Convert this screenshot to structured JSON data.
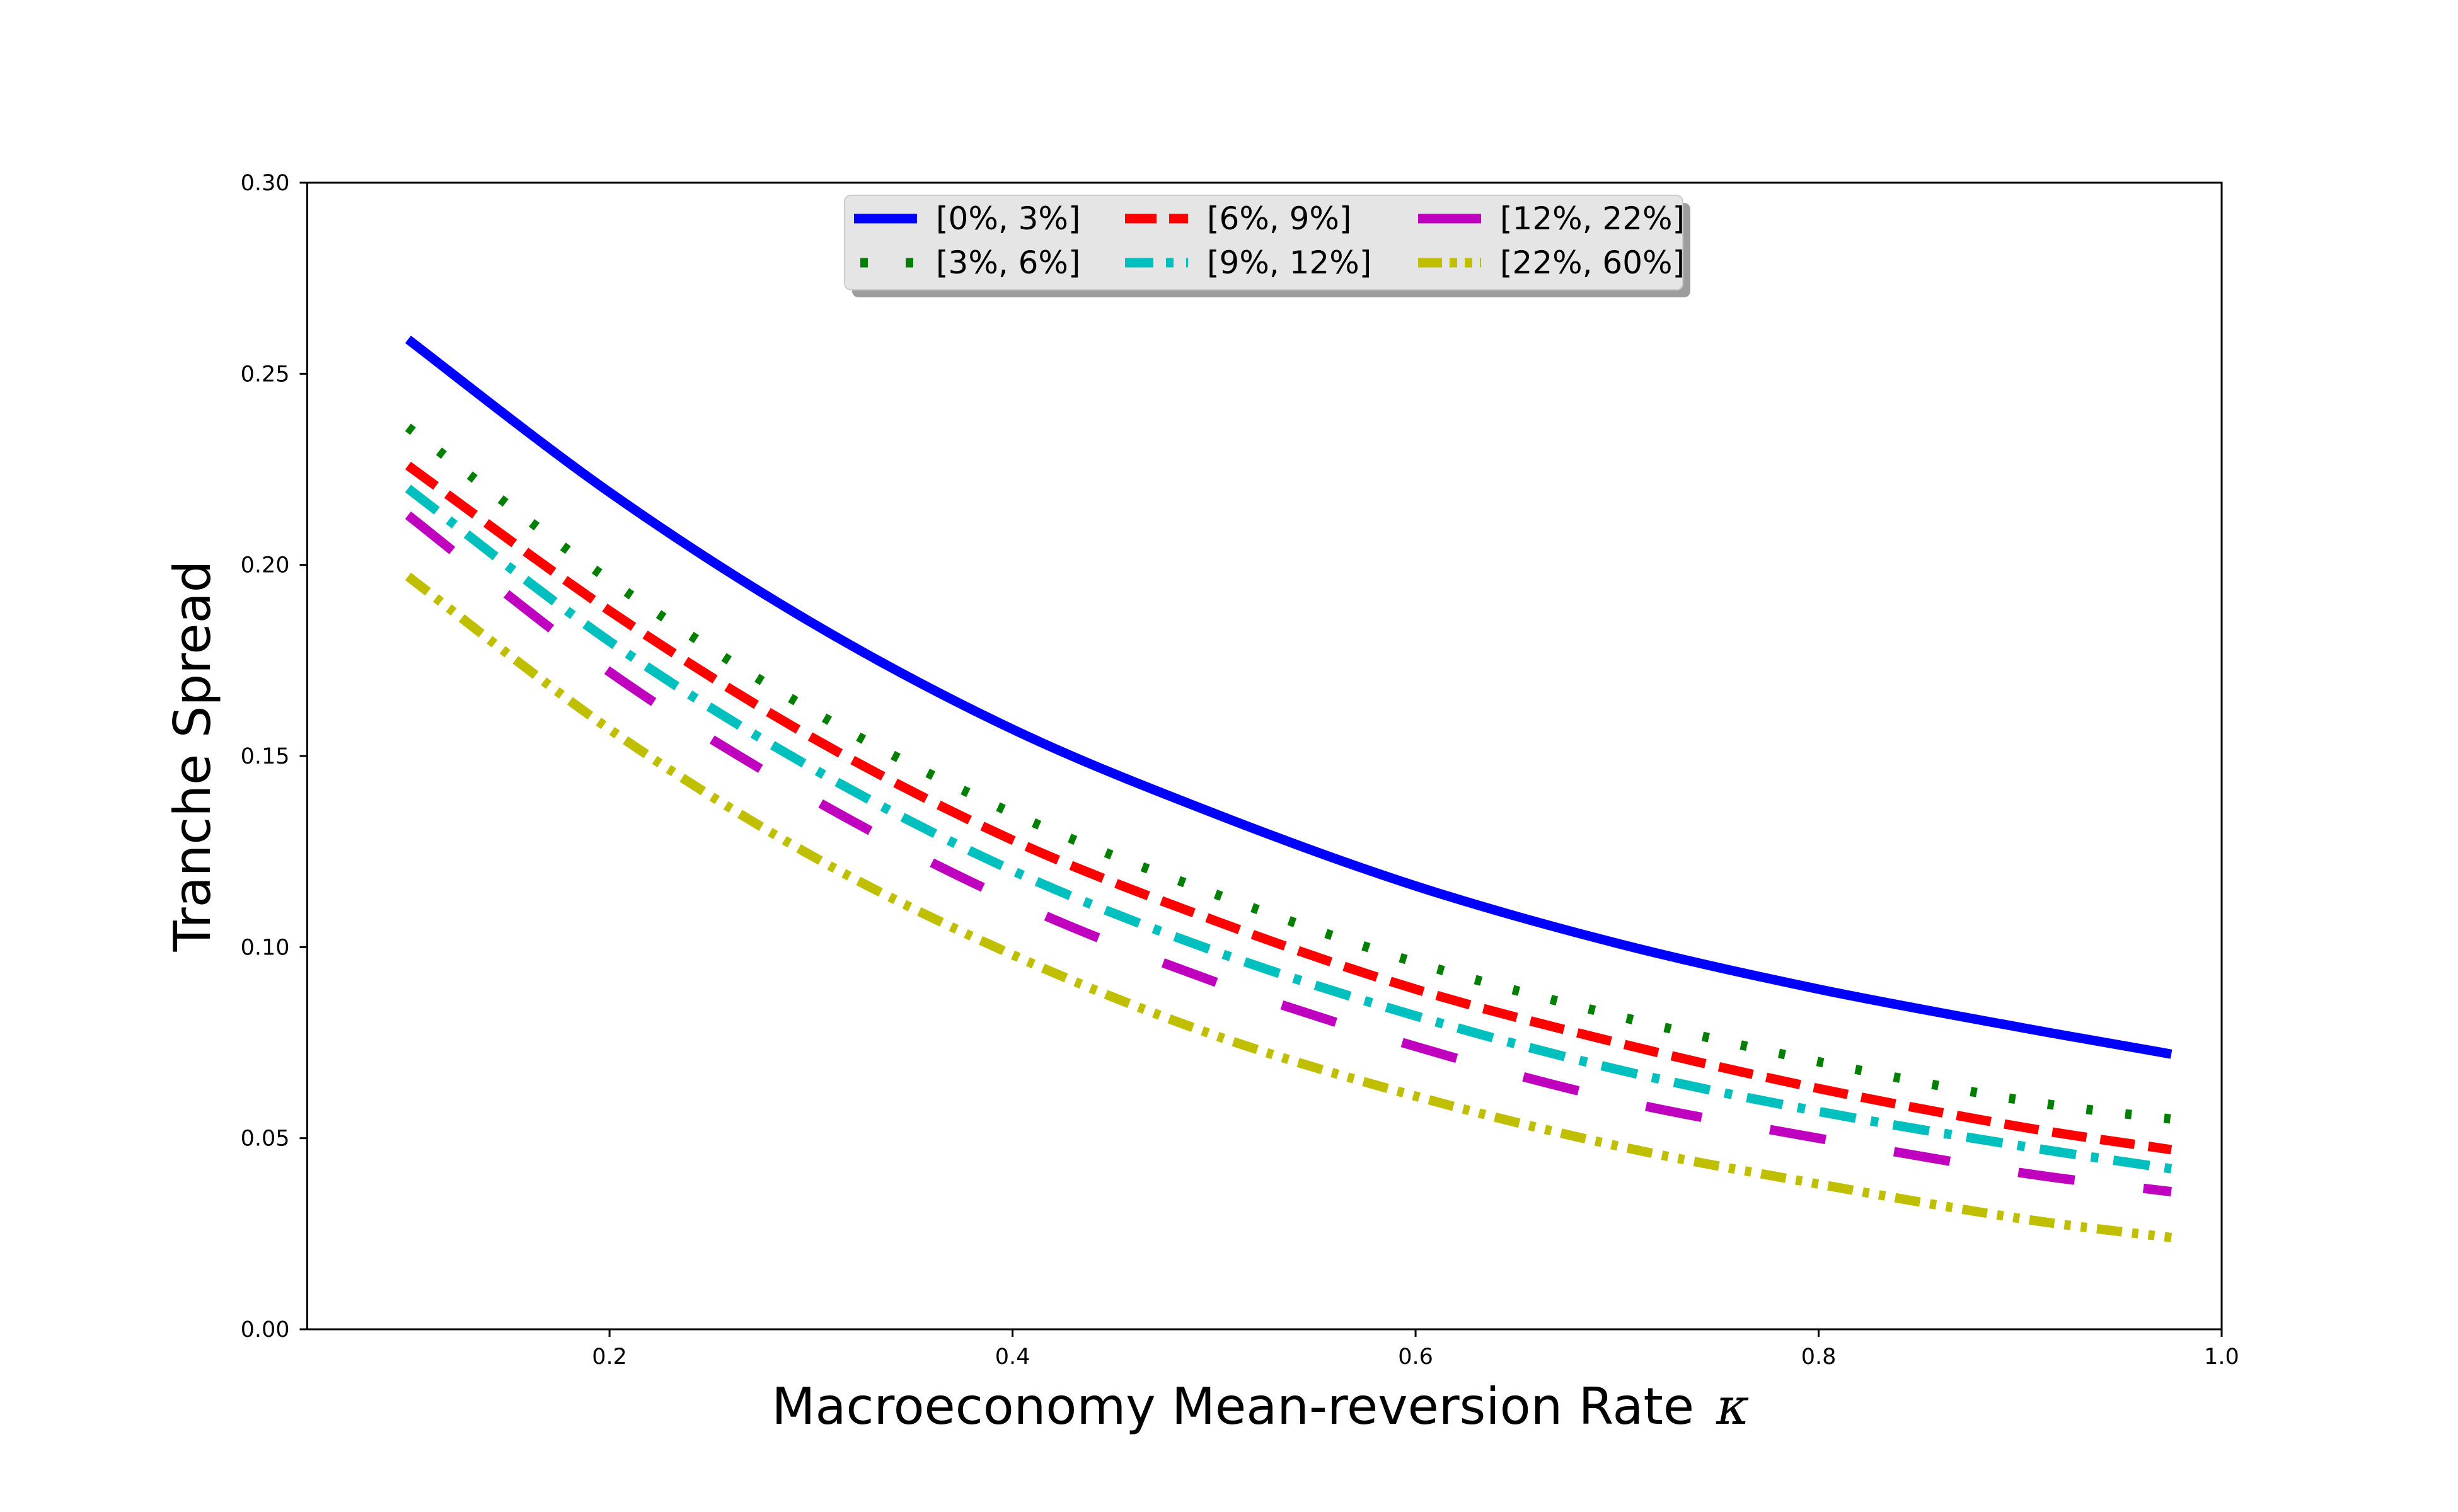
{
  "chart_data": {
    "type": "line",
    "title": "",
    "xlabel": "Macroeconomy Mean-reversion Rate",
    "xlabel_symbol": "κ",
    "ylabel": "Tranche Spread",
    "xlim": [
      0.05,
      1.0
    ],
    "ylim": [
      0.0,
      0.3
    ],
    "xticks": [
      0.2,
      0.4,
      0.6,
      0.8,
      1.0
    ],
    "xtick_labels": [
      "0.2",
      "0.4",
      "0.6",
      "0.8",
      "1.0"
    ],
    "yticks": [
      0.0,
      0.05,
      0.1,
      0.15,
      0.2,
      0.25,
      0.3
    ],
    "ytick_labels": [
      "0.00",
      "0.05",
      "0.10",
      "0.15",
      "0.20",
      "0.25",
      "0.30"
    ],
    "grid": false,
    "legend_position": "top-center",
    "legend_columns": 3,
    "x": [
      0.1,
      0.2,
      0.3,
      0.4,
      0.5,
      0.6,
      0.7,
      0.8,
      0.9,
      0.975
    ],
    "series": [
      {
        "name": "[0%, 3%]",
        "color": "#0000ff",
        "style": "solid",
        "values": [
          0.259,
          0.219,
          0.185,
          0.157,
          0.135,
          0.116,
          0.101,
          0.089,
          0.079,
          0.072
        ]
      },
      {
        "name": "[3%, 6%]",
        "color": "#007f00",
        "style": "dotted",
        "values": [
          0.236,
          0.196,
          0.162,
          0.135,
          0.114,
          0.096,
          0.082,
          0.07,
          0.06,
          0.055
        ]
      },
      {
        "name": "[6%, 9%]",
        "color": "#ff0000",
        "style": "dashed",
        "values": [
          0.226,
          0.188,
          0.155,
          0.128,
          0.107,
          0.089,
          0.075,
          0.063,
          0.053,
          0.047
        ]
      },
      {
        "name": "[9%, 12%]",
        "color": "#00bfbf",
        "style": "dashdot",
        "values": [
          0.22,
          0.18,
          0.147,
          0.12,
          0.099,
          0.082,
          0.068,
          0.057,
          0.048,
          0.042
        ]
      },
      {
        "name": "[12%, 22%]",
        "color": "#bf00bf",
        "style": "longdash",
        "values": [
          0.213,
          0.172,
          0.139,
          0.112,
          0.091,
          0.074,
          0.06,
          0.05,
          0.041,
          0.036
        ]
      },
      {
        "name": "[22%, 60%]",
        "color": "#bfbf00",
        "style": "dashdotdot",
        "values": [
          0.197,
          0.157,
          0.124,
          0.098,
          0.077,
          0.061,
          0.048,
          0.038,
          0.029,
          0.024
        ]
      }
    ]
  }
}
